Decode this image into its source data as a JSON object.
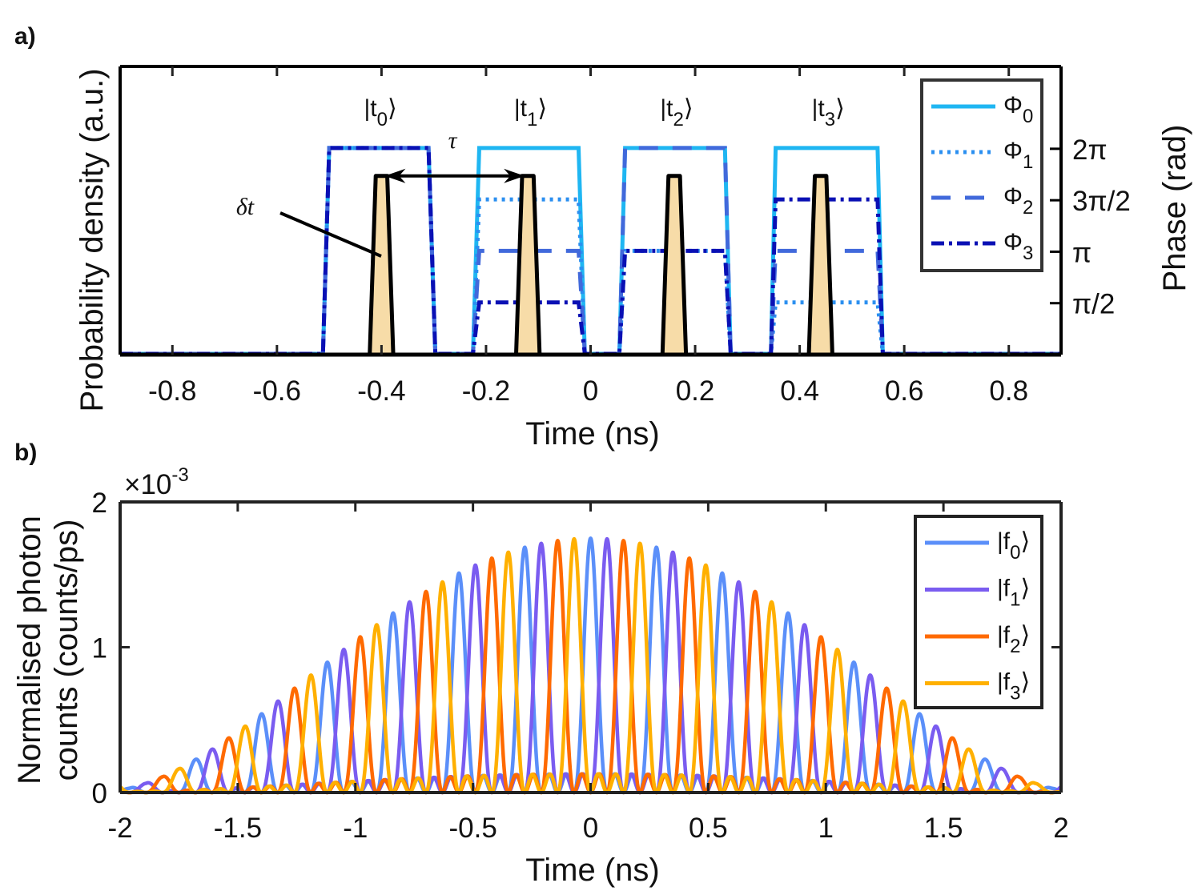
{
  "chart_data": [
    {
      "panel_label": "a)",
      "type": "line",
      "xlabel": "Time (ns)",
      "ylabel": "Probability density (a.u.)",
      "ylabel_right": "Phase (rad)",
      "xlim": [
        -0.9,
        0.9
      ],
      "xticks": [
        -0.8,
        -0.6,
        -0.4,
        -0.2,
        0,
        0.2,
        0.4,
        0.6,
        0.8
      ],
      "xtick_labels": [
        "-0.8",
        "-0.6",
        "-0.4",
        "-0.2",
        "0",
        "0.2",
        "0.4",
        "0.6",
        "0.8"
      ],
      "ylim_left": [
        0,
        1
      ],
      "ylim_right_over_pi": [
        0,
        2.8
      ],
      "yticks_right_over_pi": [
        0.5,
        1,
        1.5,
        2
      ],
      "ytick_labels_right": [
        "π/2",
        "π",
        "3π/2",
        "2π"
      ],
      "grid": false,
      "legend_placement": "top-right",
      "time_bins": [
        {
          "label": {
            "pre": "|t",
            "sub": "0",
            "post": "⟩"
          },
          "rise": [
            -0.512,
            -0.5
          ],
          "fall": [
            -0.31,
            -0.297
          ]
        },
        {
          "label": {
            "pre": "|t",
            "sub": "1",
            "post": "⟩"
          },
          "rise": [
            -0.225,
            -0.213
          ],
          "fall": [
            -0.023,
            -0.011
          ]
        },
        {
          "label": {
            "pre": "|t",
            "sub": "2",
            "post": "⟩"
          },
          "rise": [
            0.055,
            0.066
          ],
          "fall": [
            0.257,
            0.268
          ]
        },
        {
          "label": {
            "pre": "|t",
            "sub": "3",
            "post": "⟩"
          },
          "rise": [
            0.345,
            0.354
          ],
          "fall": [
            0.549,
            0.559
          ]
        }
      ],
      "phase_series": [
        {
          "name": {
            "pre": "Φ",
            "sub": "0"
          },
          "style": "solid",
          "color": "#1fb6f2",
          "phase_over_pi": [
            2,
            2,
            2,
            2
          ]
        },
        {
          "name": {
            "pre": "Φ",
            "sub": "1"
          },
          "style": "dotted",
          "color": "#2b8ff0",
          "phase_over_pi": [
            2,
            1.5,
            1,
            0.5
          ]
        },
        {
          "name": {
            "pre": "Φ",
            "sub": "2"
          },
          "style": "dashed",
          "color": "#4169db",
          "phase_over_pi": [
            2,
            1,
            2,
            1
          ]
        },
        {
          "name": {
            "pre": "Φ",
            "sub": "3"
          },
          "style": "dashdot",
          "color": "#0a10b4",
          "phase_over_pi": [
            2,
            0.5,
            1,
            1.5
          ]
        }
      ],
      "wavepackets": {
        "centers": [
          -0.4,
          -0.12,
          0.16,
          0.44
        ],
        "base_width": 0.045,
        "top_width": 0.022,
        "height": 0.62,
        "fill": "#f7dca8",
        "stroke": "#000000"
      },
      "annotations": {
        "tau": "τ",
        "tau_arrow": [
          -0.4,
          -0.12
        ],
        "delta_t": "δt"
      }
    },
    {
      "panel_label": "b)",
      "type": "line",
      "xlabel": "Time (ns)",
      "ylabel_line1": "Normalised photon",
      "ylabel_line2": "counts (counts/ps)",
      "y_multiplier": "×10",
      "y_multiplier_exp": "-3",
      "xlim": [
        -2,
        2
      ],
      "xticks": [
        -2,
        -1.5,
        -1,
        -0.5,
        0,
        0.5,
        1,
        1.5,
        2
      ],
      "xtick_labels": [
        "-2",
        "-1.5",
        "-1",
        "-0.5",
        "0",
        "0.5",
        "1",
        "1.5",
        "2"
      ],
      "ylim": [
        0,
        2
      ],
      "yticks": [
        0,
        1,
        2
      ],
      "ytick_labels": [
        "0",
        "1",
        "2"
      ],
      "grid": false,
      "legend_placement": "top-right",
      "series": [
        {
          "name": {
            "pre": "|f",
            "sub": "0",
            "post": "⟩"
          },
          "color": "#5b8ff9",
          "peaks_t": [
            -1.96,
            -1.68,
            -1.4,
            -1.12,
            -0.84,
            -0.56,
            -0.28,
            0,
            0.28,
            0.56,
            0.84,
            1.12,
            1.4,
            1.68,
            1.96
          ],
          "peaks_y": [
            0.029,
            0.227,
            0.54,
            0.896,
            1.235,
            1.51,
            1.688,
            1.75,
            1.688,
            1.51,
            1.235,
            0.896,
            0.54,
            0.227,
            0.029
          ]
        },
        {
          "name": {
            "pre": "|f",
            "sub": "1",
            "post": "⟩"
          },
          "color": "#7a5cf0",
          "peaks_t": [
            -1.89,
            -1.61,
            -1.33,
            -1.05,
            -0.77,
            -0.49,
            -0.21,
            0.07,
            0.35,
            0.63,
            0.91,
            1.19,
            1.47,
            1.75
          ],
          "peaks_y": [
            0.063,
            0.297,
            0.628,
            0.984,
            1.311,
            1.565,
            1.715,
            1.746,
            1.654,
            1.449,
            1.154,
            0.807,
            0.455,
            0.163
          ]
        },
        {
          "name": {
            "pre": "|f",
            "sub": "2",
            "post": "⟩"
          },
          "color": "#ff6a00",
          "peaks_t": [
            -1.82,
            -1.54,
            -1.26,
            -0.98,
            -0.7,
            -0.42,
            -0.14,
            0.14,
            0.42,
            0.7,
            0.98,
            1.26,
            1.54,
            1.82
          ],
          "peaks_y": [
            0.108,
            0.374,
            0.717,
            1.071,
            1.383,
            1.613,
            1.734,
            1.734,
            1.613,
            1.383,
            1.071,
            0.717,
            0.374,
            0.108
          ]
        },
        {
          "name": {
            "pre": "|f",
            "sub": "3",
            "post": "⟩"
          },
          "color": "#ffb000",
          "peaks_t": [
            -1.75,
            -1.47,
            -1.19,
            -0.91,
            -0.63,
            -0.35,
            -0.07,
            0.21,
            0.49,
            0.77,
            1.05,
            1.33,
            1.61,
            1.89
          ],
          "peaks_y": [
            0.163,
            0.455,
            0.807,
            1.154,
            1.449,
            1.654,
            1.746,
            1.715,
            1.565,
            1.311,
            0.984,
            0.628,
            0.297,
            0.063
          ]
        }
      ]
    }
  ]
}
